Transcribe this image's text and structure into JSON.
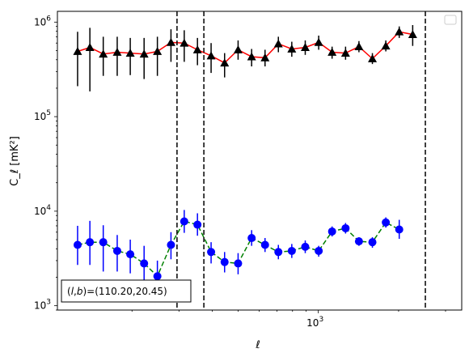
{
  "chart_data": {
    "type": "scatter",
    "title": "",
    "xlabel": "ℓ",
    "ylabel": "C_ℓ  [mK²]",
    "xscale": "log",
    "yscale": "log",
    "xlim": [
      105,
      3450
    ],
    "ylim": [
      900,
      1300000
    ],
    "grid": false,
    "legend": "top-right",
    "x_ticks": [
      {
        "value": 1000,
        "label": "10",
        "sup": "3"
      }
    ],
    "y_ticks": [
      {
        "value": 1000,
        "label": "10",
        "sup": "3"
      },
      {
        "value": 10000,
        "label": "10",
        "sup": "4"
      },
      {
        "value": 100000,
        "label": "10",
        "sup": "5"
      },
      {
        "value": 1000000,
        "label": "10",
        "sup": "6"
      }
    ],
    "vertical_lines": [
      295,
      372,
      2520
    ],
    "annotation": {
      "prefix": "(",
      "var_l": "l",
      "sep": ",",
      "var_b": "b",
      "suffix": ")=(110.20,20.45)"
    },
    "series": [
      {
        "line_color": "#ff0000",
        "line_style": "solid",
        "marker": "triangle",
        "marker_color": "#000000",
        "points": [
          {
            "x": 125,
            "y": 490000,
            "lo": 210000,
            "hi": 790000
          },
          {
            "x": 139,
            "y": 540000,
            "lo": 185000,
            "hi": 870000
          },
          {
            "x": 156,
            "y": 460000,
            "lo": 270000,
            "hi": 700000
          },
          {
            "x": 176,
            "y": 480000,
            "lo": 270000,
            "hi": 700000
          },
          {
            "x": 197,
            "y": 470000,
            "lo": 275000,
            "hi": 680000
          },
          {
            "x": 222,
            "y": 460000,
            "lo": 250000,
            "hi": 680000
          },
          {
            "x": 249,
            "y": 490000,
            "lo": 270000,
            "hi": 700000
          },
          {
            "x": 280,
            "y": 610000,
            "lo": 380000,
            "hi": 840000
          },
          {
            "x": 314,
            "y": 600000,
            "lo": 380000,
            "hi": 820000
          },
          {
            "x": 352,
            "y": 510000,
            "lo": 350000,
            "hi": 680000
          },
          {
            "x": 396,
            "y": 440000,
            "lo": 290000,
            "hi": 600000
          },
          {
            "x": 445,
            "y": 370000,
            "lo": 260000,
            "hi": 470000
          },
          {
            "x": 500,
            "y": 510000,
            "lo": 400000,
            "hi": 640000
          },
          {
            "x": 562,
            "y": 430000,
            "lo": 340000,
            "hi": 520000
          },
          {
            "x": 631,
            "y": 420000,
            "lo": 340000,
            "hi": 510000
          },
          {
            "x": 708,
            "y": 590000,
            "lo": 480000,
            "hi": 700000
          },
          {
            "x": 795,
            "y": 520000,
            "lo": 430000,
            "hi": 620000
          },
          {
            "x": 893,
            "y": 540000,
            "lo": 450000,
            "hi": 640000
          },
          {
            "x": 1003,
            "y": 610000,
            "lo": 510000,
            "hi": 720000
          },
          {
            "x": 1126,
            "y": 480000,
            "lo": 410000,
            "hi": 550000
          },
          {
            "x": 1265,
            "y": 470000,
            "lo": 400000,
            "hi": 550000
          },
          {
            "x": 1420,
            "y": 550000,
            "lo": 480000,
            "hi": 630000
          },
          {
            "x": 1595,
            "y": 410000,
            "lo": 360000,
            "hi": 470000
          },
          {
            "x": 1791,
            "y": 560000,
            "lo": 490000,
            "hi": 640000
          },
          {
            "x": 2011,
            "y": 790000,
            "lo": 680000,
            "hi": 900000
          },
          {
            "x": 2259,
            "y": 740000,
            "lo": 560000,
            "hi": 930000
          }
        ]
      },
      {
        "line_color": "#008000",
        "line_style": "dashed",
        "marker": "circle",
        "marker_color": "#0000ff",
        "points": [
          {
            "x": 125,
            "y": 4400,
            "lo": 2700,
            "hi": 7000
          },
          {
            "x": 139,
            "y": 4700,
            "lo": 2700,
            "hi": 7900
          },
          {
            "x": 156,
            "y": 4700,
            "lo": 2300,
            "hi": 7100
          },
          {
            "x": 176,
            "y": 3800,
            "lo": 2300,
            "hi": 5600
          },
          {
            "x": 197,
            "y": 3500,
            "lo": 2200,
            "hi": 5000
          },
          {
            "x": 222,
            "y": 2800,
            "lo": 1600,
            "hi": 4300
          },
          {
            "x": 249,
            "y": 2050,
            "lo": 1300,
            "hi": 3000
          },
          {
            "x": 280,
            "y": 4400,
            "lo": 3100,
            "hi": 6000
          },
          {
            "x": 314,
            "y": 7800,
            "lo": 5900,
            "hi": 10300
          },
          {
            "x": 352,
            "y": 7200,
            "lo": 5500,
            "hi": 9500
          },
          {
            "x": 396,
            "y": 3700,
            "lo": 2800,
            "hi": 4700
          },
          {
            "x": 445,
            "y": 2900,
            "lo": 2250,
            "hi": 3700
          },
          {
            "x": 500,
            "y": 2800,
            "lo": 2150,
            "hi": 3600
          },
          {
            "x": 562,
            "y": 5200,
            "lo": 4300,
            "hi": 6300
          },
          {
            "x": 631,
            "y": 4400,
            "lo": 3700,
            "hi": 5200
          },
          {
            "x": 708,
            "y": 3700,
            "lo": 3100,
            "hi": 4400
          },
          {
            "x": 795,
            "y": 3800,
            "lo": 3200,
            "hi": 4500
          },
          {
            "x": 893,
            "y": 4200,
            "lo": 3600,
            "hi": 4900
          },
          {
            "x": 1003,
            "y": 3800,
            "lo": 3300,
            "hi": 4300
          },
          {
            "x": 1126,
            "y": 6100,
            "lo": 5400,
            "hi": 6900
          },
          {
            "x": 1265,
            "y": 6600,
            "lo": 5800,
            "hi": 7500
          },
          {
            "x": 1420,
            "y": 4800,
            "lo": 4300,
            "hi": 5300
          },
          {
            "x": 1595,
            "y": 4700,
            "lo": 4100,
            "hi": 5300
          },
          {
            "x": 1791,
            "y": 7600,
            "lo": 6700,
            "hi": 8600
          },
          {
            "x": 2011,
            "y": 6400,
            "lo": 5100,
            "hi": 8100
          }
        ]
      }
    ]
  }
}
